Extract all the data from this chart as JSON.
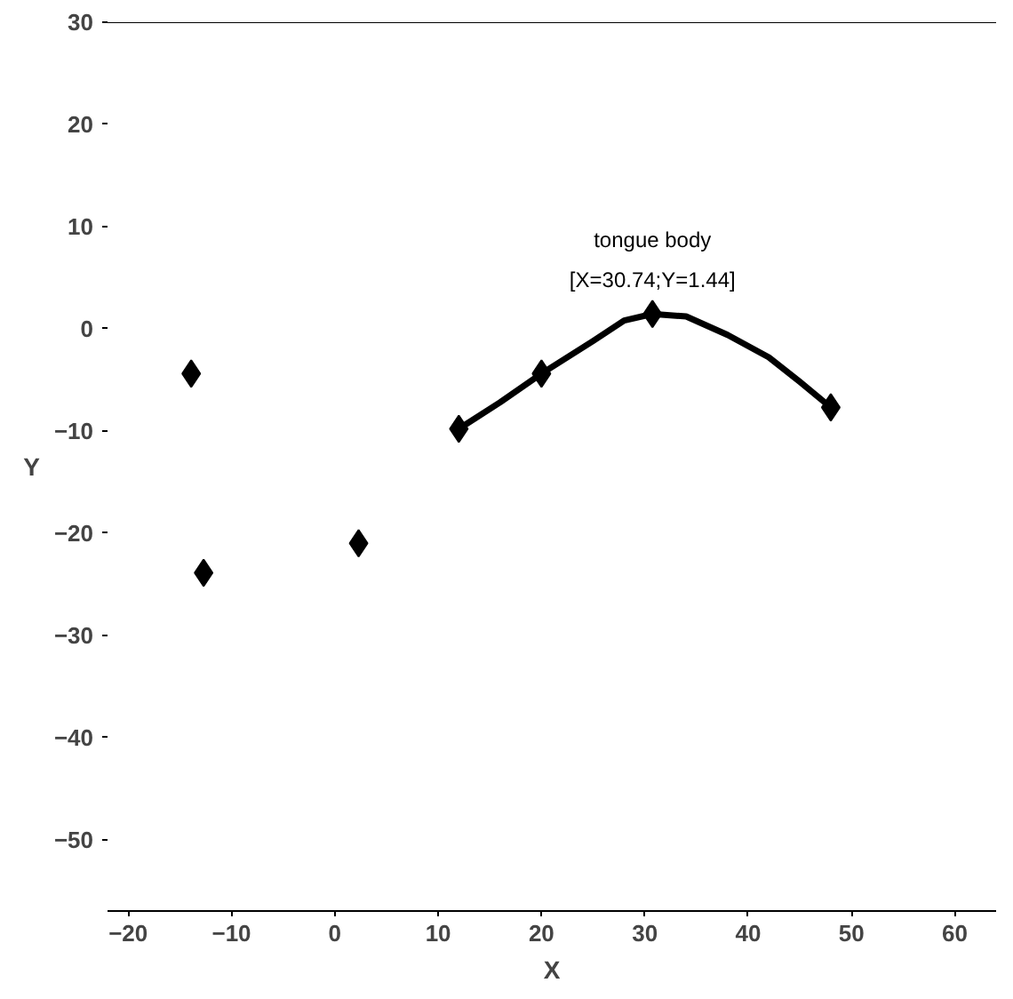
{
  "chart_data": {
    "type": "scatter",
    "xlabel": "X",
    "ylabel": "Y",
    "xlim": [
      -22,
      64
    ],
    "ylim": [
      -57,
      30
    ],
    "xticks": [
      -20,
      -10,
      0,
      10,
      20,
      30,
      40,
      50,
      60
    ],
    "yticks": [
      -50,
      -40,
      -30,
      -20,
      -10,
      0,
      10,
      20,
      30
    ],
    "grid": false,
    "series": [
      {
        "type": "line",
        "marker": "none",
        "color": "#000000",
        "x": [
          12,
          16,
          20,
          25,
          28,
          30.74,
          34,
          38,
          42,
          45,
          48
        ],
        "values": [
          -9.8,
          -7.2,
          -4.4,
          -1.2,
          0.8,
          1.44,
          1.2,
          -0.6,
          -2.8,
          -5.2,
          -7.7
        ]
      },
      {
        "marker": "diamond",
        "color": "#000000",
        "x": [
          -13.9,
          -12.7,
          2.3,
          12,
          20,
          30.74,
          48
        ],
        "values": [
          -4.4,
          -23.9,
          -21,
          -9.8,
          -4.4,
          1.44,
          -7.7
        ]
      }
    ],
    "annotations": [
      {
        "text": "tongue body\n[X=30.74;Y=1.44]",
        "x": 30.74,
        "y": 1.44
      }
    ]
  }
}
